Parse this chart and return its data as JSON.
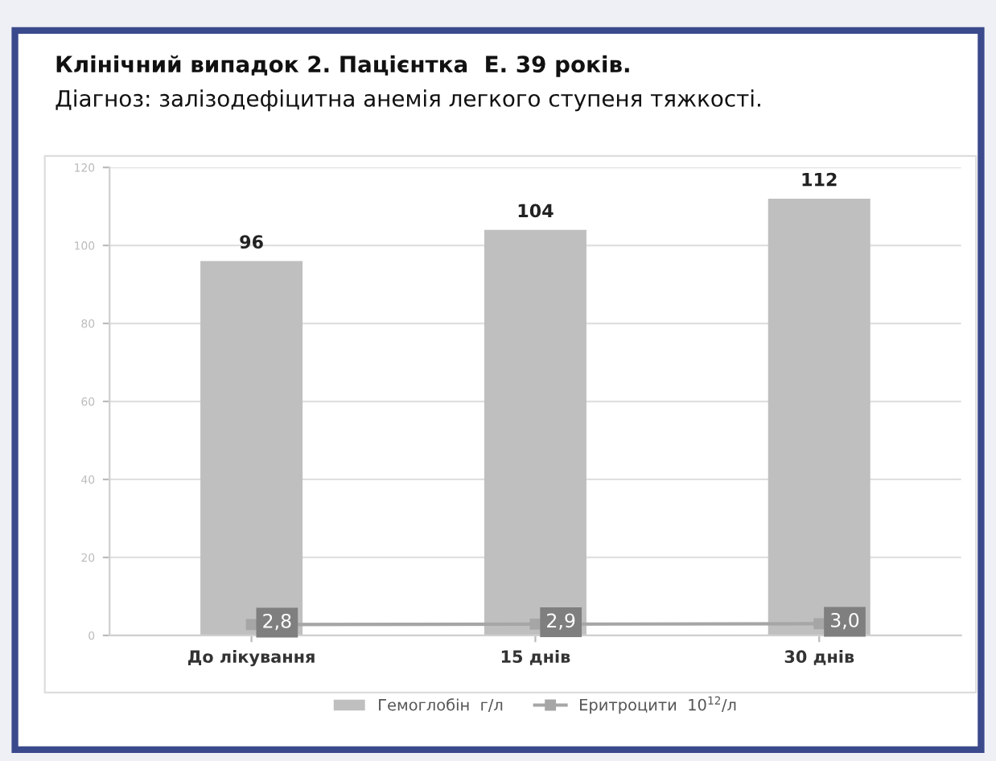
{
  "chart_data": {
    "type": "bar",
    "title": "Клінічний випадок 2. Пацієнтка  Е. 39 років.",
    "subtitle": "Діагноз: залізодефіцитна анемія легкого ступеня тяжкості.",
    "categories": [
      "До лікування",
      "15 днів",
      "30 днів"
    ],
    "series": [
      {
        "name": "Гемоглобін  г/л",
        "color": "#bfbfbf",
        "values": [
          96,
          104,
          112
        ],
        "value_labels": [
          "96",
          "104",
          "112"
        ]
      },
      {
        "name": "Еритроцити  10$^{12}$/л",
        "type": "line",
        "color": "#a6a6a6",
        "values": [
          2.8,
          2.9,
          3.0
        ],
        "value_labels": [
          "2,8",
          "2,9",
          "3,0"
        ],
        "marker": "square"
      }
    ],
    "ylim": [
      0,
      120
    ],
    "yticks": [
      0,
      20,
      40,
      60,
      80,
      100,
      120
    ],
    "grid": "y",
    "legend": "bottom"
  }
}
